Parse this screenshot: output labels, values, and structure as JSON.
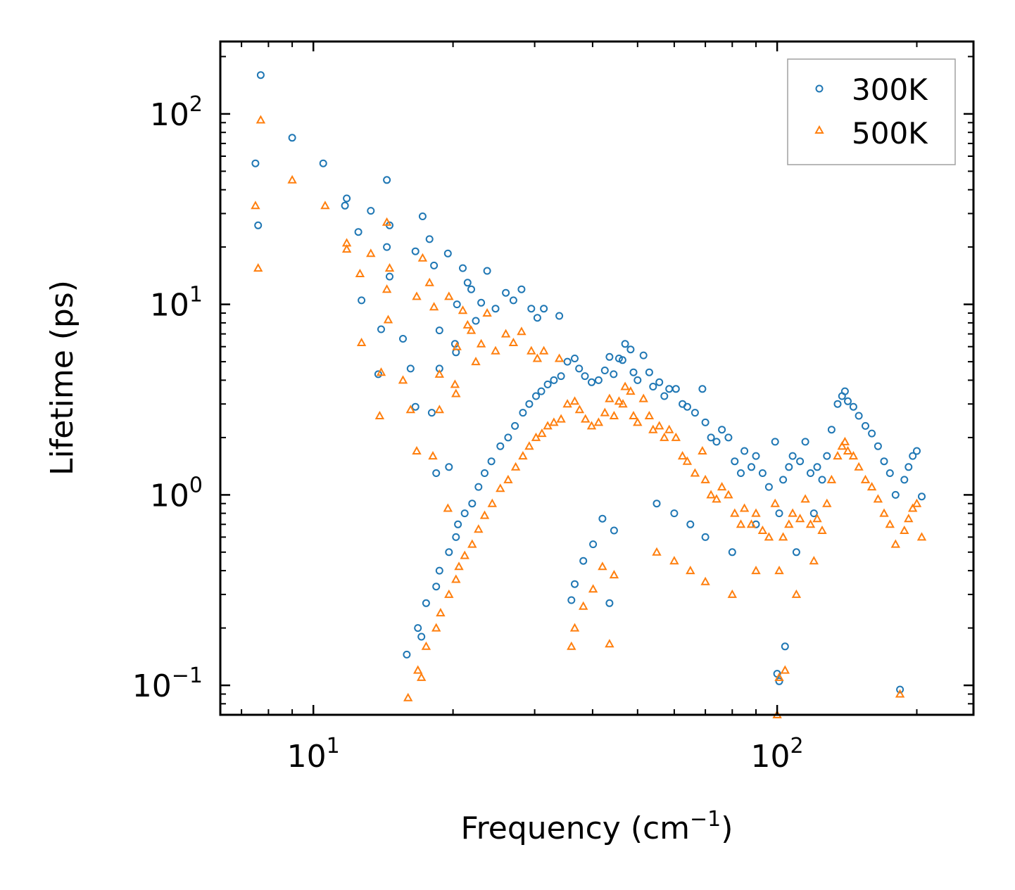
{
  "chart_data": {
    "type": "scatter",
    "title": "",
    "xlabel": "Frequency (cm",
    "xlabel_sup": "−1",
    "xlabel_end": ")",
    "ylabel": "Lifetime (ps)",
    "xscale": "log",
    "yscale": "log",
    "xlim": [
      6.3,
      265
    ],
    "ylim": [
      0.07,
      240
    ],
    "x_ticks": [
      {
        "value": 10,
        "base": "10",
        "exp": "1"
      },
      {
        "value": 100,
        "base": "10",
        "exp": "2"
      }
    ],
    "y_ticks": [
      {
        "value": 0.1,
        "base": "10",
        "exp": "−1"
      },
      {
        "value": 1,
        "base": "10",
        "exp": "0"
      },
      {
        "value": 10,
        "base": "10",
        "exp": "1"
      },
      {
        "value": 100,
        "base": "10",
        "exp": "2"
      }
    ],
    "legend_position": "top-right",
    "series": [
      {
        "name": "300K",
        "color": "#1f77b4",
        "marker": "circle",
        "points": [
          [
            7.5,
            55
          ],
          [
            7.7,
            160
          ],
          [
            7.6,
            26
          ],
          [
            9.0,
            75
          ],
          [
            10.5,
            55
          ],
          [
            11.8,
            36
          ],
          [
            11.7,
            33
          ],
          [
            13.3,
            31
          ],
          [
            14.4,
            45
          ],
          [
            14.6,
            26
          ],
          [
            14.4,
            20
          ],
          [
            14.6,
            14
          ],
          [
            12.5,
            24
          ],
          [
            12.7,
            10.5
          ],
          [
            14.0,
            7.4
          ],
          [
            13.8,
            4.3
          ],
          [
            15.6,
            6.6
          ],
          [
            16.2,
            4.6
          ],
          [
            16.6,
            2.9
          ],
          [
            16.6,
            19
          ],
          [
            17.2,
            29
          ],
          [
            17.8,
            22
          ],
          [
            18.2,
            16
          ],
          [
            18.7,
            7.3
          ],
          [
            18.7,
            4.6
          ],
          [
            19.5,
            18.5
          ],
          [
            18.0,
            2.7
          ],
          [
            18.4,
            1.3
          ],
          [
            19.6,
            1.4
          ],
          [
            20.4,
            10
          ],
          [
            20.2,
            6.2
          ],
          [
            20.3,
            5.6
          ],
          [
            21.0,
            15.5
          ],
          [
            21.5,
            13
          ],
          [
            21.9,
            12
          ],
          [
            22.4,
            8.2
          ],
          [
            23.0,
            10.2
          ],
          [
            23.7,
            15
          ],
          [
            24.7,
            9.5
          ],
          [
            26.0,
            11.5
          ],
          [
            27.0,
            10.5
          ],
          [
            28.1,
            12
          ],
          [
            29.5,
            9.5
          ],
          [
            30.4,
            8.5
          ],
          [
            31.4,
            9.5
          ],
          [
            33.9,
            8.7
          ],
          [
            15.9,
            0.145
          ],
          [
            16.8,
            0.2
          ],
          [
            17.1,
            0.18
          ],
          [
            17.5,
            0.27
          ],
          [
            18.4,
            0.33
          ],
          [
            18.7,
            0.4
          ],
          [
            19.6,
            0.5
          ],
          [
            20.3,
            0.6
          ],
          [
            20.5,
            0.7
          ],
          [
            21.2,
            0.8
          ],
          [
            22.0,
            0.9
          ],
          [
            22.7,
            1.1
          ],
          [
            23.4,
            1.3
          ],
          [
            24.2,
            1.5
          ],
          [
            25.3,
            1.8
          ],
          [
            26.3,
            2.0
          ],
          [
            27.2,
            2.3
          ],
          [
            28.3,
            2.7
          ],
          [
            29.2,
            3.0
          ],
          [
            30.2,
            3.3
          ],
          [
            31.0,
            3.5
          ],
          [
            32.0,
            3.8
          ],
          [
            33.0,
            4.0
          ],
          [
            34.2,
            4.2
          ],
          [
            35.3,
            5.0
          ],
          [
            36.6,
            5.2
          ],
          [
            37.4,
            4.6
          ],
          [
            38.5,
            4.2
          ],
          [
            39.8,
            3.9
          ],
          [
            41.2,
            4.0
          ],
          [
            42.5,
            4.5
          ],
          [
            43.5,
            5.3
          ],
          [
            44.4,
            4.3
          ],
          [
            45.6,
            5.2
          ],
          [
            46.4,
            5.1
          ],
          [
            47.0,
            6.2
          ],
          [
            48.3,
            5.8
          ],
          [
            49.0,
            4.4
          ],
          [
            50.0,
            4.0
          ],
          [
            51.5,
            5.4
          ],
          [
            53.0,
            4.4
          ],
          [
            54.0,
            3.7
          ],
          [
            55.7,
            3.9
          ],
          [
            57.1,
            3.3
          ],
          [
            58.5,
            3.6
          ],
          [
            60.5,
            3.6
          ],
          [
            62.5,
            3.0
          ],
          [
            64.0,
            2.9
          ],
          [
            66.5,
            2.7
          ],
          [
            69.0,
            3.6
          ],
          [
            70.0,
            2.4
          ],
          [
            72.0,
            2.0
          ],
          [
            74.0,
            1.9
          ],
          [
            76.0,
            2.2
          ],
          [
            78.5,
            2.0
          ],
          [
            81.0,
            1.5
          ],
          [
            83.5,
            1.3
          ],
          [
            85.0,
            1.7
          ],
          [
            88.0,
            1.4
          ],
          [
            90.0,
            1.6
          ],
          [
            93.0,
            1.3
          ],
          [
            96.0,
            1.1
          ],
          [
            99.0,
            1.9
          ],
          [
            101,
            0.8
          ],
          [
            103,
            1.2
          ],
          [
            106,
            1.4
          ],
          [
            108,
            1.6
          ],
          [
            112,
            1.5
          ],
          [
            115,
            1.9
          ],
          [
            118,
            1.3
          ],
          [
            122,
            1.4
          ],
          [
            125,
            1.2
          ],
          [
            128,
            1.6
          ],
          [
            131,
            2.2
          ],
          [
            135,
            3.0
          ],
          [
            138,
            3.3
          ],
          [
            140,
            3.5
          ],
          [
            142,
            3.1
          ],
          [
            146,
            2.9
          ],
          [
            150,
            2.6
          ],
          [
            155,
            2.3
          ],
          [
            160,
            2.1
          ],
          [
            165,
            1.8
          ],
          [
            170,
            1.5
          ],
          [
            175,
            1.3
          ],
          [
            180,
            1.0
          ],
          [
            184,
            0.095
          ],
          [
            188,
            1.2
          ],
          [
            192,
            1.4
          ],
          [
            196,
            1.6
          ],
          [
            200,
            1.7
          ],
          [
            205,
            0.98
          ],
          [
            36.0,
            0.28
          ],
          [
            36.6,
            0.34
          ],
          [
            38.2,
            0.45
          ],
          [
            40.1,
            0.55
          ],
          [
            42.0,
            0.75
          ],
          [
            44.5,
            0.65
          ],
          [
            43.5,
            0.27
          ],
          [
            55.0,
            0.9
          ],
          [
            60.0,
            0.8
          ],
          [
            65.0,
            0.7
          ],
          [
            70.0,
            0.6
          ],
          [
            80.0,
            0.5
          ],
          [
            90.0,
            0.7
          ],
          [
            100,
            0.115
          ],
          [
            101,
            0.105
          ],
          [
            104,
            0.16
          ],
          [
            110,
            0.5
          ],
          [
            120,
            0.8
          ]
        ]
      },
      {
        "name": "500K",
        "color": "#ff7f0e",
        "marker": "triangle",
        "points": [
          [
            7.5,
            33
          ],
          [
            7.7,
            93
          ],
          [
            7.6,
            15.5
          ],
          [
            9.0,
            45
          ],
          [
            10.6,
            33
          ],
          [
            11.8,
            21
          ],
          [
            11.8,
            19.5
          ],
          [
            13.3,
            18.5
          ],
          [
            14.4,
            27
          ],
          [
            14.6,
            15.5
          ],
          [
            14.4,
            12
          ],
          [
            14.5,
            8.3
          ],
          [
            12.6,
            14.5
          ],
          [
            12.7,
            6.3
          ],
          [
            14.0,
            4.4
          ],
          [
            13.9,
            2.6
          ],
          [
            15.6,
            4.0
          ],
          [
            16.2,
            2.8
          ],
          [
            16.7,
            1.7
          ],
          [
            16.7,
            11
          ],
          [
            17.2,
            17.5
          ],
          [
            17.8,
            13
          ],
          [
            18.2,
            9.7
          ],
          [
            18.7,
            4.3
          ],
          [
            18.7,
            2.8
          ],
          [
            19.6,
            11
          ],
          [
            18.1,
            1.6
          ],
          [
            19.5,
            0.85
          ],
          [
            20.4,
            6.0
          ],
          [
            20.2,
            3.8
          ],
          [
            20.3,
            3.4
          ],
          [
            21.0,
            9.3
          ],
          [
            21.5,
            7.8
          ],
          [
            21.9,
            7.3
          ],
          [
            22.4,
            5.0
          ],
          [
            23.0,
            6.2
          ],
          [
            23.7,
            9.0
          ],
          [
            24.7,
            5.7
          ],
          [
            26.0,
            7.0
          ],
          [
            27.0,
            6.3
          ],
          [
            28.1,
            7.2
          ],
          [
            29.5,
            5.7
          ],
          [
            30.4,
            5.2
          ],
          [
            31.4,
            5.7
          ],
          [
            33.9,
            5.2
          ],
          [
            16.0,
            0.086
          ],
          [
            16.8,
            0.12
          ],
          [
            17.1,
            0.11
          ],
          [
            17.5,
            0.16
          ],
          [
            18.4,
            0.2
          ],
          [
            18.8,
            0.24
          ],
          [
            19.6,
            0.3
          ],
          [
            20.3,
            0.36
          ],
          [
            20.6,
            0.42
          ],
          [
            21.2,
            0.48
          ],
          [
            22.0,
            0.55
          ],
          [
            22.7,
            0.66
          ],
          [
            23.4,
            0.78
          ],
          [
            24.3,
            0.9
          ],
          [
            25.3,
            1.08
          ],
          [
            26.3,
            1.2
          ],
          [
            27.3,
            1.4
          ],
          [
            28.3,
            1.6
          ],
          [
            29.2,
            1.8
          ],
          [
            30.2,
            2.0
          ],
          [
            31.1,
            2.1
          ],
          [
            32.0,
            2.3
          ],
          [
            33.0,
            2.4
          ],
          [
            34.2,
            2.5
          ],
          [
            35.3,
            3.0
          ],
          [
            36.6,
            3.1
          ],
          [
            37.5,
            2.8
          ],
          [
            38.6,
            2.5
          ],
          [
            39.8,
            2.3
          ],
          [
            41.2,
            2.4
          ],
          [
            42.5,
            2.7
          ],
          [
            43.5,
            3.2
          ],
          [
            44.5,
            2.6
          ],
          [
            45.6,
            3.1
          ],
          [
            46.5,
            3.0
          ],
          [
            47.0,
            3.7
          ],
          [
            48.3,
            3.5
          ],
          [
            49.0,
            2.6
          ],
          [
            50.0,
            2.4
          ],
          [
            51.5,
            3.2
          ],
          [
            53.0,
            2.6
          ],
          [
            54.0,
            2.2
          ],
          [
            55.7,
            2.3
          ],
          [
            57.1,
            2.0
          ],
          [
            58.5,
            2.2
          ],
          [
            60.5,
            2.0
          ],
          [
            62.5,
            1.6
          ],
          [
            64.0,
            1.5
          ],
          [
            66.5,
            1.3
          ],
          [
            69.0,
            1.7
          ],
          [
            70.0,
            1.2
          ],
          [
            72.0,
            1.0
          ],
          [
            74.0,
            0.95
          ],
          [
            76.0,
            1.1
          ],
          [
            78.5,
            1.0
          ],
          [
            81.0,
            0.8
          ],
          [
            83.5,
            0.7
          ],
          [
            85.0,
            0.85
          ],
          [
            88.0,
            0.7
          ],
          [
            90.0,
            0.8
          ],
          [
            93.0,
            0.65
          ],
          [
            96.0,
            0.6
          ],
          [
            99.0,
            0.9
          ],
          [
            101,
            0.4
          ],
          [
            103,
            0.6
          ],
          [
            106,
            0.7
          ],
          [
            108,
            0.8
          ],
          [
            112,
            0.75
          ],
          [
            115,
            0.95
          ],
          [
            118,
            0.7
          ],
          [
            122,
            0.75
          ],
          [
            125,
            0.65
          ],
          [
            128,
            0.9
          ],
          [
            131,
            1.2
          ],
          [
            135,
            1.6
          ],
          [
            138,
            1.8
          ],
          [
            140,
            1.9
          ],
          [
            142,
            1.7
          ],
          [
            146,
            1.6
          ],
          [
            150,
            1.4
          ],
          [
            155,
            1.2
          ],
          [
            160,
            1.1
          ],
          [
            165,
            0.95
          ],
          [
            170,
            0.8
          ],
          [
            175,
            0.7
          ],
          [
            180,
            0.55
          ],
          [
            184,
            0.09
          ],
          [
            188,
            0.65
          ],
          [
            192,
            0.75
          ],
          [
            196,
            0.85
          ],
          [
            200,
            0.9
          ],
          [
            205,
            0.6
          ],
          [
            36.0,
            0.16
          ],
          [
            36.6,
            0.2
          ],
          [
            38.2,
            0.26
          ],
          [
            40.1,
            0.32
          ],
          [
            42.0,
            0.42
          ],
          [
            44.5,
            0.38
          ],
          [
            43.5,
            0.165
          ],
          [
            55.0,
            0.5
          ],
          [
            60.0,
            0.45
          ],
          [
            65.0,
            0.4
          ],
          [
            70.0,
            0.35
          ],
          [
            80.0,
            0.3
          ],
          [
            90.0,
            0.4
          ],
          [
            100,
            0.07
          ],
          [
            101,
            0.11
          ],
          [
            104,
            0.12
          ],
          [
            110,
            0.3
          ],
          [
            120,
            0.45
          ]
        ]
      }
    ]
  }
}
